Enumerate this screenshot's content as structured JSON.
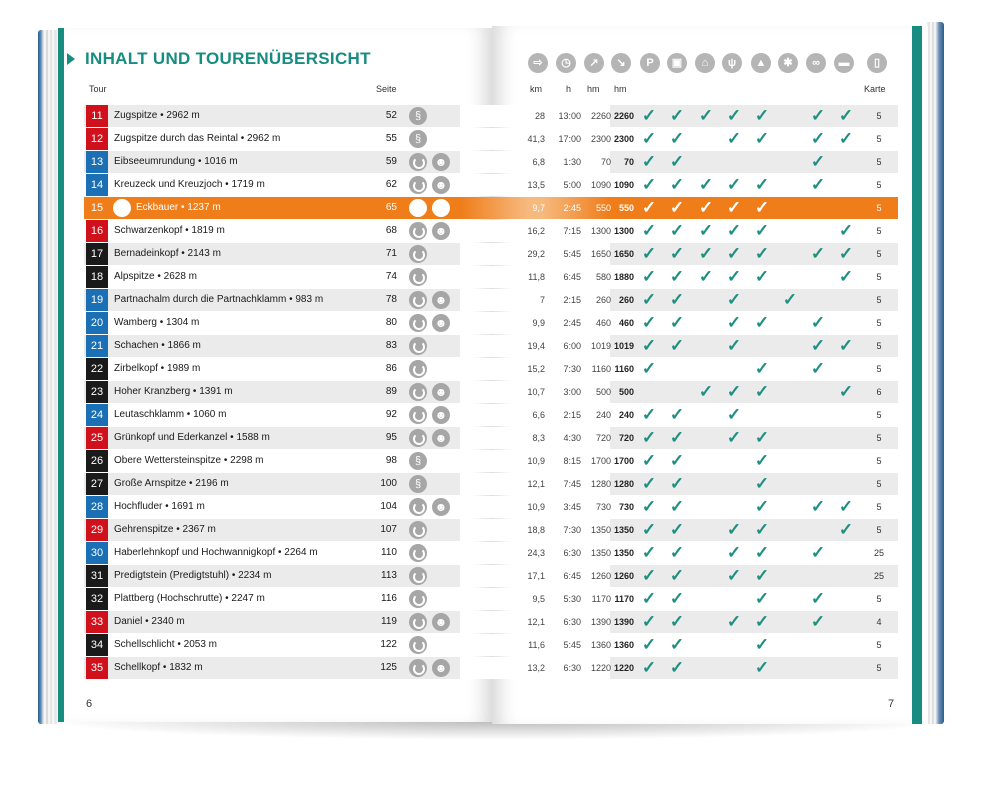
{
  "title": "INHALT UND TOURENÜBERSICHT",
  "headers": {
    "tour": "Tour",
    "seite": "Seite",
    "km": "km",
    "h": "h",
    "hm_up": "hm",
    "hm_down": "hm",
    "karte": "Karte"
  },
  "header_icons": [
    {
      "name": "trail-sign-icon",
      "glyph": "⇨"
    },
    {
      "name": "clock-icon",
      "glyph": "◷"
    },
    {
      "name": "ascent-icon",
      "glyph": "↗"
    },
    {
      "name": "descent-icon",
      "glyph": "↘"
    },
    {
      "name": "parking-icon",
      "glyph": "P"
    },
    {
      "name": "bus-icon",
      "glyph": "▣"
    },
    {
      "name": "cable-car-icon",
      "glyph": "⌂"
    },
    {
      "name": "restaurant-icon",
      "glyph": "ψ"
    },
    {
      "name": "summit-icon",
      "glyph": "▲"
    },
    {
      "name": "winter-icon",
      "glyph": "✱"
    },
    {
      "name": "bike-icon",
      "glyph": "∞"
    },
    {
      "name": "bed-icon",
      "glyph": "▬"
    },
    {
      "name": "map-icon",
      "glyph": "▯"
    }
  ],
  "check_glyph": "✓",
  "rows": [
    {
      "num": "11",
      "color": "red",
      "name": "Zugspitze • 2962 m",
      "seite": "52",
      "icons": [
        "zig"
      ],
      "km": "28",
      "h": "13:00",
      "hm_up": "2260",
      "hm_down": "2260",
      "checks": [
        1,
        1,
        1,
        1,
        1,
        0,
        1,
        1
      ],
      "karte": "5"
    },
    {
      "num": "12",
      "color": "red",
      "name": "Zugspitze durch das Reintal • 2962 m",
      "seite": "55",
      "icons": [
        "zig"
      ],
      "km": "41,3",
      "h": "17:00",
      "hm_up": "2300",
      "hm_down": "2300",
      "checks": [
        1,
        1,
        0,
        1,
        1,
        0,
        1,
        1
      ],
      "karte": "5"
    },
    {
      "num": "13",
      "color": "blue",
      "name": "Eibseeumrundung • 1016 m",
      "seite": "59",
      "icons": [
        "loop",
        "bear"
      ],
      "km": "6,8",
      "h": "1:30",
      "hm_up": "70",
      "hm_down": "70",
      "checks": [
        1,
        1,
        0,
        0,
        0,
        0,
        1,
        0
      ],
      "karte": "5"
    },
    {
      "num": "14",
      "color": "blue",
      "name": "Kreuzeck und Kreuzjoch • 1719 m",
      "seite": "62",
      "icons": [
        "loop",
        "bear"
      ],
      "km": "13,5",
      "h": "5:00",
      "hm_up": "1090",
      "hm_down": "1090",
      "checks": [
        1,
        1,
        1,
        1,
        1,
        0,
        1,
        0
      ],
      "karte": "5"
    },
    {
      "num": "15",
      "color": "orange",
      "highlight": true,
      "name": "Eckbauer • 1237 m",
      "seite": "65",
      "icons": [
        "loop",
        "bear"
      ],
      "km": "9,7",
      "h": "2:45",
      "hm_up": "550",
      "hm_down": "550",
      "checks": [
        1,
        1,
        1,
        1,
        1,
        0,
        0,
        0
      ],
      "karte": "5"
    },
    {
      "num": "16",
      "color": "red",
      "name": "Schwarzenkopf • 1819 m",
      "seite": "68",
      "icons": [
        "loop",
        "bear"
      ],
      "km": "16,2",
      "h": "7:15",
      "hm_up": "1300",
      "hm_down": "1300",
      "checks": [
        1,
        1,
        1,
        1,
        1,
        0,
        0,
        1
      ],
      "karte": "5"
    },
    {
      "num": "17",
      "color": "black",
      "name": "Bernadeinkopf • 2143 m",
      "seite": "71",
      "icons": [
        "loop"
      ],
      "km": "29,2",
      "h": "5:45",
      "hm_up": "1650",
      "hm_down": "1650",
      "checks": [
        1,
        1,
        1,
        1,
        1,
        0,
        1,
        1
      ],
      "karte": "5"
    },
    {
      "num": "18",
      "color": "black",
      "name": "Alpspitze • 2628 m",
      "seite": "74",
      "icons": [
        "loop"
      ],
      "km": "11,8",
      "h": "6:45",
      "hm_up": "580",
      "hm_down": "1880",
      "checks": [
        1,
        1,
        1,
        1,
        1,
        0,
        0,
        1
      ],
      "karte": "5"
    },
    {
      "num": "19",
      "color": "blue",
      "name": "Partnachalm durch die Partnachklamm • 983 m",
      "seite": "78",
      "icons": [
        "loop",
        "bear"
      ],
      "km": "7",
      "h": "2:15",
      "hm_up": "260",
      "hm_down": "260",
      "checks": [
        1,
        1,
        0,
        1,
        0,
        1,
        0,
        0
      ],
      "karte": "5"
    },
    {
      "num": "20",
      "color": "blue",
      "name": "Wamberg • 1304 m",
      "seite": "80",
      "icons": [
        "loop",
        "bear"
      ],
      "km": "9,9",
      "h": "2:45",
      "hm_up": "460",
      "hm_down": "460",
      "checks": [
        1,
        1,
        0,
        1,
        1,
        0,
        1,
        0
      ],
      "karte": "5"
    },
    {
      "num": "21",
      "color": "blue",
      "name": "Schachen • 1866 m",
      "seite": "83",
      "icons": [
        "loop"
      ],
      "km": "19,4",
      "h": "6:00",
      "hm_up": "1019",
      "hm_down": "1019",
      "checks": [
        1,
        1,
        0,
        1,
        0,
        0,
        1,
        1
      ],
      "karte": "5"
    },
    {
      "num": "22",
      "color": "black",
      "name": "Zirbelkopf • 1989 m",
      "seite": "86",
      "icons": [
        "loop"
      ],
      "km": "15,2",
      "h": "7:30",
      "hm_up": "1160",
      "hm_down": "1160",
      "checks": [
        1,
        0,
        0,
        0,
        1,
        0,
        1,
        0
      ],
      "karte": "5"
    },
    {
      "num": "23",
      "color": "black",
      "name": "Hoher Kranzberg • 1391 m",
      "seite": "89",
      "icons": [
        "loop",
        "bear"
      ],
      "km": "10,7",
      "h": "3:00",
      "hm_up": "500",
      "hm_down": "500",
      "checks": [
        0,
        0,
        1,
        1,
        1,
        0,
        0,
        1
      ],
      "karte": "6"
    },
    {
      "num": "24",
      "color": "blue",
      "name": "Leutaschklamm • 1060 m",
      "seite": "92",
      "icons": [
        "loop",
        "bear"
      ],
      "km": "6,6",
      "h": "2:15",
      "hm_up": "240",
      "hm_down": "240",
      "checks": [
        1,
        1,
        0,
        1,
        0,
        0,
        0,
        0
      ],
      "karte": "5"
    },
    {
      "num": "25",
      "color": "red",
      "name": "Grünkopf und Ederkanzel • 1588 m",
      "seite": "95",
      "icons": [
        "loop",
        "bear"
      ],
      "km": "8,3",
      "h": "4:30",
      "hm_up": "720",
      "hm_down": "720",
      "checks": [
        1,
        1,
        0,
        1,
        1,
        0,
        0,
        0
      ],
      "karte": "5"
    },
    {
      "num": "26",
      "color": "black",
      "name": "Obere Wettersteinspitze • 2298 m",
      "seite": "98",
      "icons": [
        "zig"
      ],
      "km": "10,9",
      "h": "8:15",
      "hm_up": "1700",
      "hm_down": "1700",
      "checks": [
        1,
        1,
        0,
        0,
        1,
        0,
        0,
        0
      ],
      "karte": "5"
    },
    {
      "num": "27",
      "color": "black",
      "name": "Große Arnspitze • 2196 m",
      "seite": "100",
      "icons": [
        "zig"
      ],
      "km": "12,1",
      "h": "7:45",
      "hm_up": "1280",
      "hm_down": "1280",
      "checks": [
        1,
        1,
        0,
        0,
        1,
        0,
        0,
        0
      ],
      "karte": "5"
    },
    {
      "num": "28",
      "color": "blue",
      "name": "Hochfluder • 1691 m",
      "seite": "104",
      "icons": [
        "loop",
        "bear"
      ],
      "km": "10,9",
      "h": "3:45",
      "hm_up": "730",
      "hm_down": "730",
      "checks": [
        1,
        1,
        0,
        0,
        1,
        0,
        1,
        1
      ],
      "karte": "5"
    },
    {
      "num": "29",
      "color": "red",
      "name": "Gehrenspitze • 2367 m",
      "seite": "107",
      "icons": [
        "loop"
      ],
      "km": "18,8",
      "h": "7:30",
      "hm_up": "1350",
      "hm_down": "1350",
      "checks": [
        1,
        1,
        0,
        1,
        1,
        0,
        0,
        1
      ],
      "karte": "5"
    },
    {
      "num": "30",
      "color": "blue",
      "name": "Haberlehnkopf und Hochwannigkopf • 2264 m",
      "seite": "110",
      "icons": [
        "loop"
      ],
      "km": "24,3",
      "h": "6:30",
      "hm_up": "1350",
      "hm_down": "1350",
      "checks": [
        1,
        1,
        0,
        1,
        1,
        0,
        1,
        0
      ],
      "karte": "25"
    },
    {
      "num": "31",
      "color": "black",
      "name": "Predigtstein (Predigtstuhl) • 2234 m",
      "seite": "113",
      "icons": [
        "loop"
      ],
      "km": "17,1",
      "h": "6:45",
      "hm_up": "1260",
      "hm_down": "1260",
      "checks": [
        1,
        1,
        0,
        1,
        1,
        0,
        0,
        0
      ],
      "karte": "25"
    },
    {
      "num": "32",
      "color": "black",
      "name": "Plattberg (Hochschrutte) • 2247 m",
      "seite": "116",
      "icons": [
        "loop"
      ],
      "km": "9,5",
      "h": "5:30",
      "hm_up": "1170",
      "hm_down": "1170",
      "checks": [
        1,
        1,
        0,
        0,
        1,
        0,
        1,
        0
      ],
      "karte": "5"
    },
    {
      "num": "33",
      "color": "red",
      "name": "Daniel • 2340 m",
      "seite": "119",
      "icons": [
        "loop",
        "bear"
      ],
      "km": "12,1",
      "h": "6:30",
      "hm_up": "1390",
      "hm_down": "1390",
      "checks": [
        1,
        1,
        0,
        1,
        1,
        0,
        1,
        0
      ],
      "karte": "4"
    },
    {
      "num": "34",
      "color": "black",
      "name": "Schellschlicht • 2053 m",
      "seite": "122",
      "icons": [
        "loop"
      ],
      "km": "11,6",
      "h": "5:45",
      "hm_up": "1360",
      "hm_down": "1360",
      "checks": [
        1,
        1,
        0,
        0,
        1,
        0,
        0,
        0
      ],
      "karte": "5"
    },
    {
      "num": "35",
      "color": "red",
      "name": "Schellkopf • 1832 m",
      "seite": "125",
      "icons": [
        "loop",
        "bear"
      ],
      "km": "13,2",
      "h": "6:30",
      "hm_up": "1220",
      "hm_down": "1220",
      "checks": [
        1,
        1,
        0,
        0,
        1,
        0,
        0,
        0
      ],
      "karte": "5"
    }
  ],
  "page_left": "6",
  "page_right": "7"
}
